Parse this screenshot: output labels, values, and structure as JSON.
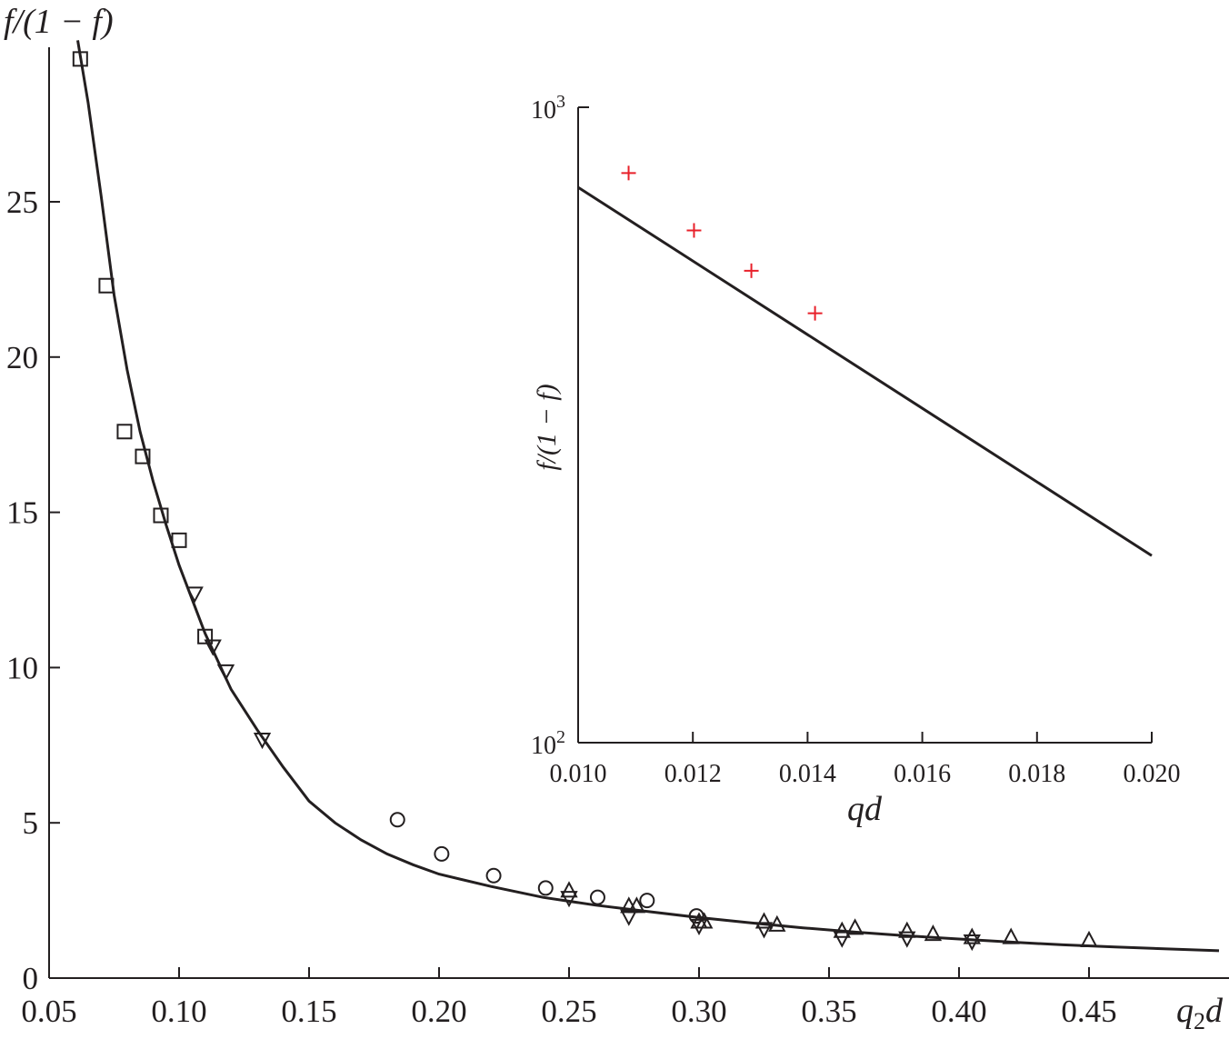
{
  "chart_data": [
    {
      "type": "scatter",
      "title": "",
      "ylabel": "f/(1 − f)",
      "xlabel": "q2d",
      "xlim": [
        0.05,
        0.5
      ],
      "ylim": [
        0,
        30
      ],
      "xticks": [
        "0.05",
        "0.10",
        "0.15",
        "0.20",
        "0.25",
        "0.30",
        "0.35",
        "0.40",
        "0.45"
      ],
      "xtick_values": [
        0.05,
        0.1,
        0.15,
        0.2,
        0.25,
        0.3,
        0.35,
        0.4,
        0.45
      ],
      "yticks": [
        "0",
        "5",
        "10",
        "15",
        "20",
        "25"
      ],
      "ytick_values": [
        0,
        5,
        10,
        15,
        20,
        25
      ],
      "grid": false,
      "series": [
        {
          "marker": "square",
          "points": [
            [
              0.062,
              29.6
            ],
            [
              0.072,
              22.3
            ],
            [
              0.079,
              17.6
            ],
            [
              0.086,
              16.8
            ],
            [
              0.093,
              14.9
            ],
            [
              0.1,
              14.1
            ],
            [
              0.11,
              11.0
            ]
          ]
        },
        {
          "marker": "triangle-down",
          "points": [
            [
              0.106,
              12.4
            ],
            [
              0.113,
              10.7
            ],
            [
              0.118,
              9.9
            ],
            [
              0.132,
              7.7
            ],
            [
              0.25,
              2.6
            ],
            [
              0.273,
              2.0
            ],
            [
              0.3,
              1.7
            ],
            [
              0.325,
              1.6
            ],
            [
              0.355,
              1.3
            ],
            [
              0.38,
              1.3
            ],
            [
              0.405,
              1.2
            ]
          ]
        },
        {
          "marker": "circle",
          "points": [
            [
              0.184,
              5.1
            ],
            [
              0.201,
              4.0
            ],
            [
              0.221,
              3.3
            ],
            [
              0.241,
              2.9
            ],
            [
              0.261,
              2.6
            ],
            [
              0.28,
              2.5
            ],
            [
              0.299,
              2.0
            ]
          ]
        },
        {
          "marker": "triangle-up",
          "points": [
            [
              0.25,
              2.8
            ],
            [
              0.273,
              2.3
            ],
            [
              0.276,
              2.3
            ],
            [
              0.3,
              1.8
            ],
            [
              0.302,
              1.8
            ],
            [
              0.325,
              1.8
            ],
            [
              0.33,
              1.7
            ],
            [
              0.355,
              1.5
            ],
            [
              0.36,
              1.6
            ],
            [
              0.38,
              1.5
            ],
            [
              0.39,
              1.4
            ],
            [
              0.405,
              1.3
            ],
            [
              0.42,
              1.3
            ],
            [
              0.45,
              1.2
            ]
          ]
        }
      ],
      "fit_line": [
        [
          0.061,
          30.2
        ],
        [
          0.065,
          28.2
        ],
        [
          0.07,
          25.2
        ],
        [
          0.075,
          22.0
        ],
        [
          0.08,
          19.6
        ],
        [
          0.085,
          17.6
        ],
        [
          0.09,
          16.0
        ],
        [
          0.095,
          14.6
        ],
        [
          0.1,
          13.3
        ],
        [
          0.105,
          12.2
        ],
        [
          0.11,
          11.1
        ],
        [
          0.115,
          10.2
        ],
        [
          0.12,
          9.3
        ],
        [
          0.13,
          8.0
        ],
        [
          0.14,
          6.8
        ],
        [
          0.15,
          5.7
        ],
        [
          0.16,
          5.0
        ],
        [
          0.17,
          4.45
        ],
        [
          0.18,
          4.0
        ],
        [
          0.19,
          3.65
        ],
        [
          0.2,
          3.35
        ],
        [
          0.22,
          2.95
        ],
        [
          0.24,
          2.6
        ],
        [
          0.26,
          2.35
        ],
        [
          0.28,
          2.15
        ],
        [
          0.3,
          1.95
        ],
        [
          0.32,
          1.78
        ],
        [
          0.34,
          1.62
        ],
        [
          0.36,
          1.48
        ],
        [
          0.38,
          1.36
        ],
        [
          0.4,
          1.26
        ],
        [
          0.42,
          1.16
        ],
        [
          0.44,
          1.07
        ],
        [
          0.46,
          1.0
        ],
        [
          0.48,
          0.94
        ],
        [
          0.5,
          0.88
        ]
      ]
    },
    {
      "type": "scatter",
      "title": "",
      "ylabel": "f/(1 − f)",
      "xlabel": "qd",
      "xlim": [
        0.01,
        0.02
      ],
      "ylim": [
        100,
        1000
      ],
      "yscale": "log",
      "xticks": [
        "0.010",
        "0.012",
        "0.014",
        "0.016",
        "0.018",
        "0.020"
      ],
      "xtick_values": [
        0.01,
        0.012,
        0.014,
        0.016,
        0.018,
        0.02
      ],
      "yticks_base": "10",
      "yticks_exp": [
        "3",
        "2"
      ],
      "ytick_values": [
        1000,
        100
      ],
      "grid": false,
      "series": [
        {
          "marker": "plus",
          "color": "#e8202a",
          "points": [
            [
              0.01088,
              788
            ],
            [
              0.01202,
              640
            ],
            [
              0.01302,
              553
            ],
            [
              0.01413,
              474
            ]
          ]
        }
      ],
      "fit_line": [
        [
          0.01,
          748
        ],
        [
          0.02,
          197
        ]
      ],
      "position": "top-right"
    }
  ]
}
